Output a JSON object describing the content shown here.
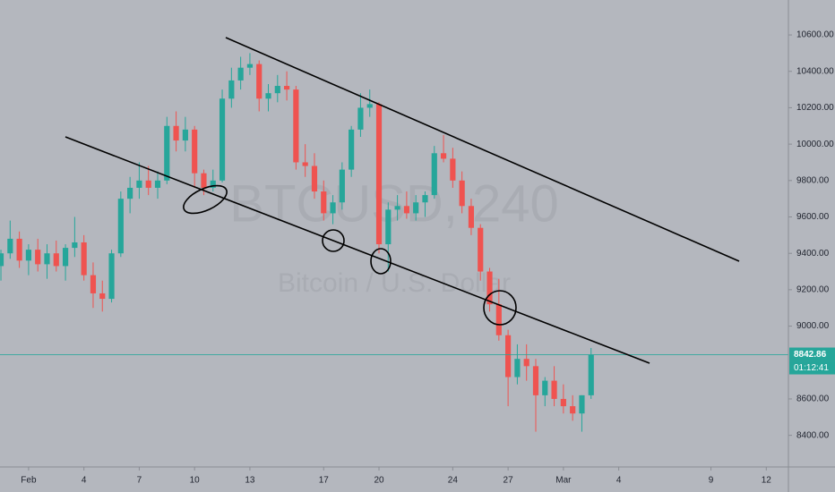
{
  "chart_data": {
    "type": "candlestick",
    "watermark": "BTCUSD, 240",
    "subtitle": "Bitcoin / U.S. Dollar",
    "x": [
      -1.5,
      -1,
      -0.5,
      0,
      0.5,
      1,
      1.5,
      2,
      2.5,
      3,
      3.5,
      4,
      4.5,
      5,
      5.5,
      6,
      6.5,
      7,
      7.5,
      8,
      8.5,
      9,
      9.5,
      10,
      10.5,
      11,
      11.5,
      12,
      12.5,
      13,
      13.5,
      14,
      14.5,
      15,
      15.5,
      16,
      16.5,
      17,
      17.5,
      18,
      18.5,
      19,
      19.5,
      20,
      20.5,
      21,
      21.5,
      22,
      22.5,
      23,
      23.5,
      24,
      24.5,
      25,
      25.5,
      26,
      26.5,
      27,
      27.5,
      28,
      28.5,
      29,
      29.5,
      30,
      30.5
    ],
    "open": [
      9330,
      9400,
      9480,
      9360,
      9420,
      9340,
      9400,
      9330,
      9430,
      9460,
      9280,
      9180,
      9150,
      9400,
      9700,
      9760,
      9800,
      9760,
      9800,
      10100,
      10020,
      10080,
      9840,
      9760,
      9800,
      10250,
      10350,
      10420,
      10440,
      10250,
      10280,
      10320,
      10300,
      9900,
      9880,
      9740,
      9620,
      9680,
      9860,
      10080,
      10200,
      10220,
      9450,
      9640,
      9660,
      9620,
      9680,
      9720,
      9950,
      9920,
      9800,
      9660,
      9540,
      9300,
      9120,
      8950,
      8720,
      8820,
      8780,
      8620,
      8700,
      8600,
      8560,
      8520,
      8620
    ],
    "high": [
      9420,
      9580,
      9520,
      9450,
      9480,
      9450,
      9470,
      9450,
      9600,
      9500,
      9350,
      9250,
      9420,
      9740,
      9820,
      9900,
      9880,
      9850,
      10150,
      10180,
      10150,
      10100,
      9860,
      9860,
      10300,
      10420,
      10480,
      10500,
      10460,
      10330,
      10380,
      10400,
      10320,
      10000,
      9950,
      9800,
      9720,
      9900,
      10100,
      10280,
      10300,
      10230,
      9680,
      9720,
      9740,
      9720,
      9740,
      9990,
      10050,
      9980,
      9850,
      9700,
      9560,
      9320,
      9260,
      8980,
      8900,
      8900,
      8820,
      8720,
      8780,
      8680,
      8620,
      8620,
      8880
    ],
    "low": [
      9250,
      9370,
      9320,
      9280,
      9300,
      9260,
      9300,
      9250,
      9380,
      9250,
      9100,
      9080,
      9130,
      9380,
      9620,
      9700,
      9720,
      9700,
      9780,
      9960,
      9960,
      9760,
      9720,
      9740,
      9790,
      10200,
      10300,
      10380,
      10180,
      10180,
      10230,
      10240,
      9860,
      9820,
      9700,
      9580,
      9560,
      9640,
      9820,
      10040,
      10150,
      9400,
      9300,
      9580,
      9590,
      9580,
      9600,
      9700,
      9900,
      9760,
      9620,
      9500,
      9250,
      9080,
      8920,
      8560,
      8680,
      8700,
      8420,
      8560,
      8560,
      8520,
      8480,
      8420,
      8600
    ],
    "close": [
      9400,
      9480,
      9360,
      9420,
      9340,
      9400,
      9330,
      9430,
      9460,
      9280,
      9180,
      9150,
      9400,
      9700,
      9760,
      9800,
      9760,
      9800,
      10100,
      10020,
      10080,
      9840,
      9760,
      9800,
      10250,
      10350,
      10420,
      10440,
      10250,
      10280,
      10320,
      10300,
      9900,
      9880,
      9740,
      9620,
      9680,
      9860,
      10080,
      10200,
      10220,
      9450,
      9640,
      9660,
      9620,
      9680,
      9720,
      9950,
      9920,
      9800,
      9660,
      9540,
      9300,
      9120,
      8950,
      8720,
      8820,
      8780,
      8620,
      8700,
      8600,
      8560,
      8520,
      8620,
      8842.86
    ],
    "up_color": "#26a69a",
    "down_color": "#ef5350",
    "xlim": [
      -1.55,
      41.2
    ],
    "xticks": [
      {
        "value": 0,
        "label": "Feb"
      },
      {
        "value": 3,
        "label": "4"
      },
      {
        "value": 6,
        "label": "7"
      },
      {
        "value": 9,
        "label": "10"
      },
      {
        "value": 12,
        "label": "13"
      },
      {
        "value": 16,
        "label": "17"
      },
      {
        "value": 19,
        "label": "20"
      },
      {
        "value": 23,
        "label": "24"
      },
      {
        "value": 26,
        "label": "27"
      },
      {
        "value": 29,
        "label": "Mar"
      },
      {
        "value": 32,
        "label": "4"
      },
      {
        "value": 37,
        "label": "9"
      },
      {
        "value": 40,
        "label": "12"
      }
    ],
    "ylim": [
      8236,
      10792
    ],
    "yticks": [
      {
        "value": 8400,
        "label": "8400.00"
      },
      {
        "value": 8600,
        "label": "8600.00"
      },
      {
        "value": 9000,
        "label": "9000.00"
      },
      {
        "value": 9200,
        "label": "9200.00"
      },
      {
        "value": 9400,
        "label": "9400.00"
      },
      {
        "value": 9600,
        "label": "9600.00"
      },
      {
        "value": 9800,
        "label": "9800.00"
      },
      {
        "value": 10000,
        "label": "10000.00"
      },
      {
        "value": 10200,
        "label": "10200.00"
      },
      {
        "value": 10400,
        "label": "10400.00"
      },
      {
        "value": 10600,
        "label": "10600.00"
      }
    ],
    "last_price": 8842.86,
    "countdown": "01:12:41"
  }
}
